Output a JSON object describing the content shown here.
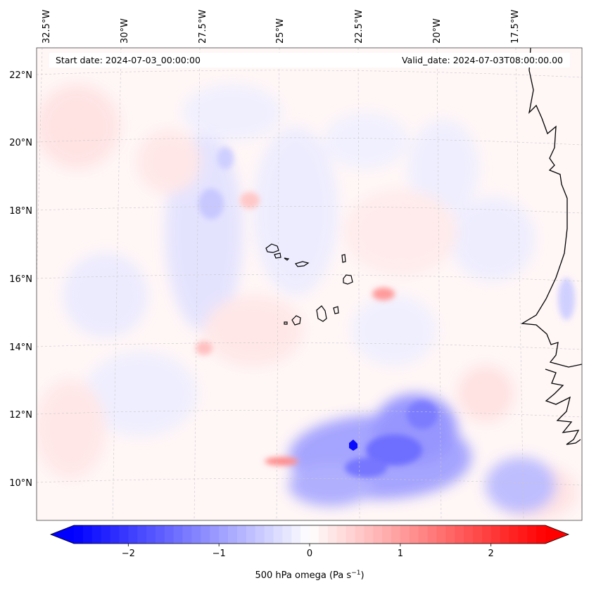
{
  "map": {
    "start_label": "Start date: 2024-07-03_00:00:00",
    "valid_label": "Valid_date: 2024-07-03T08:00:00.00",
    "lon_labels": [
      "32.5°W",
      "30°W",
      "27.5°W",
      "25°W",
      "22.5°W",
      "20°W",
      "17.5°W"
    ],
    "lat_labels": [
      "22°N",
      "20°N",
      "18°N",
      "16°N",
      "14°N",
      "12°N",
      "10°N"
    ],
    "variable": "500 hPa omega",
    "units": "Pa s",
    "units_exp": "−1",
    "colorbar": {
      "min": -2.6,
      "max": 2.6,
      "ticks": [
        -2,
        -1,
        0,
        1,
        2
      ],
      "tick_labels": [
        "−2",
        "−1",
        "0",
        "1",
        "2"
      ],
      "colormap": "bwr",
      "low_color": "#0000ff",
      "mid_color": "#ffffff",
      "high_color": "#ff0000"
    }
  },
  "colors": {
    "coast": "#000000",
    "grid": "#c8c8c8",
    "frame": "#444444"
  }
}
